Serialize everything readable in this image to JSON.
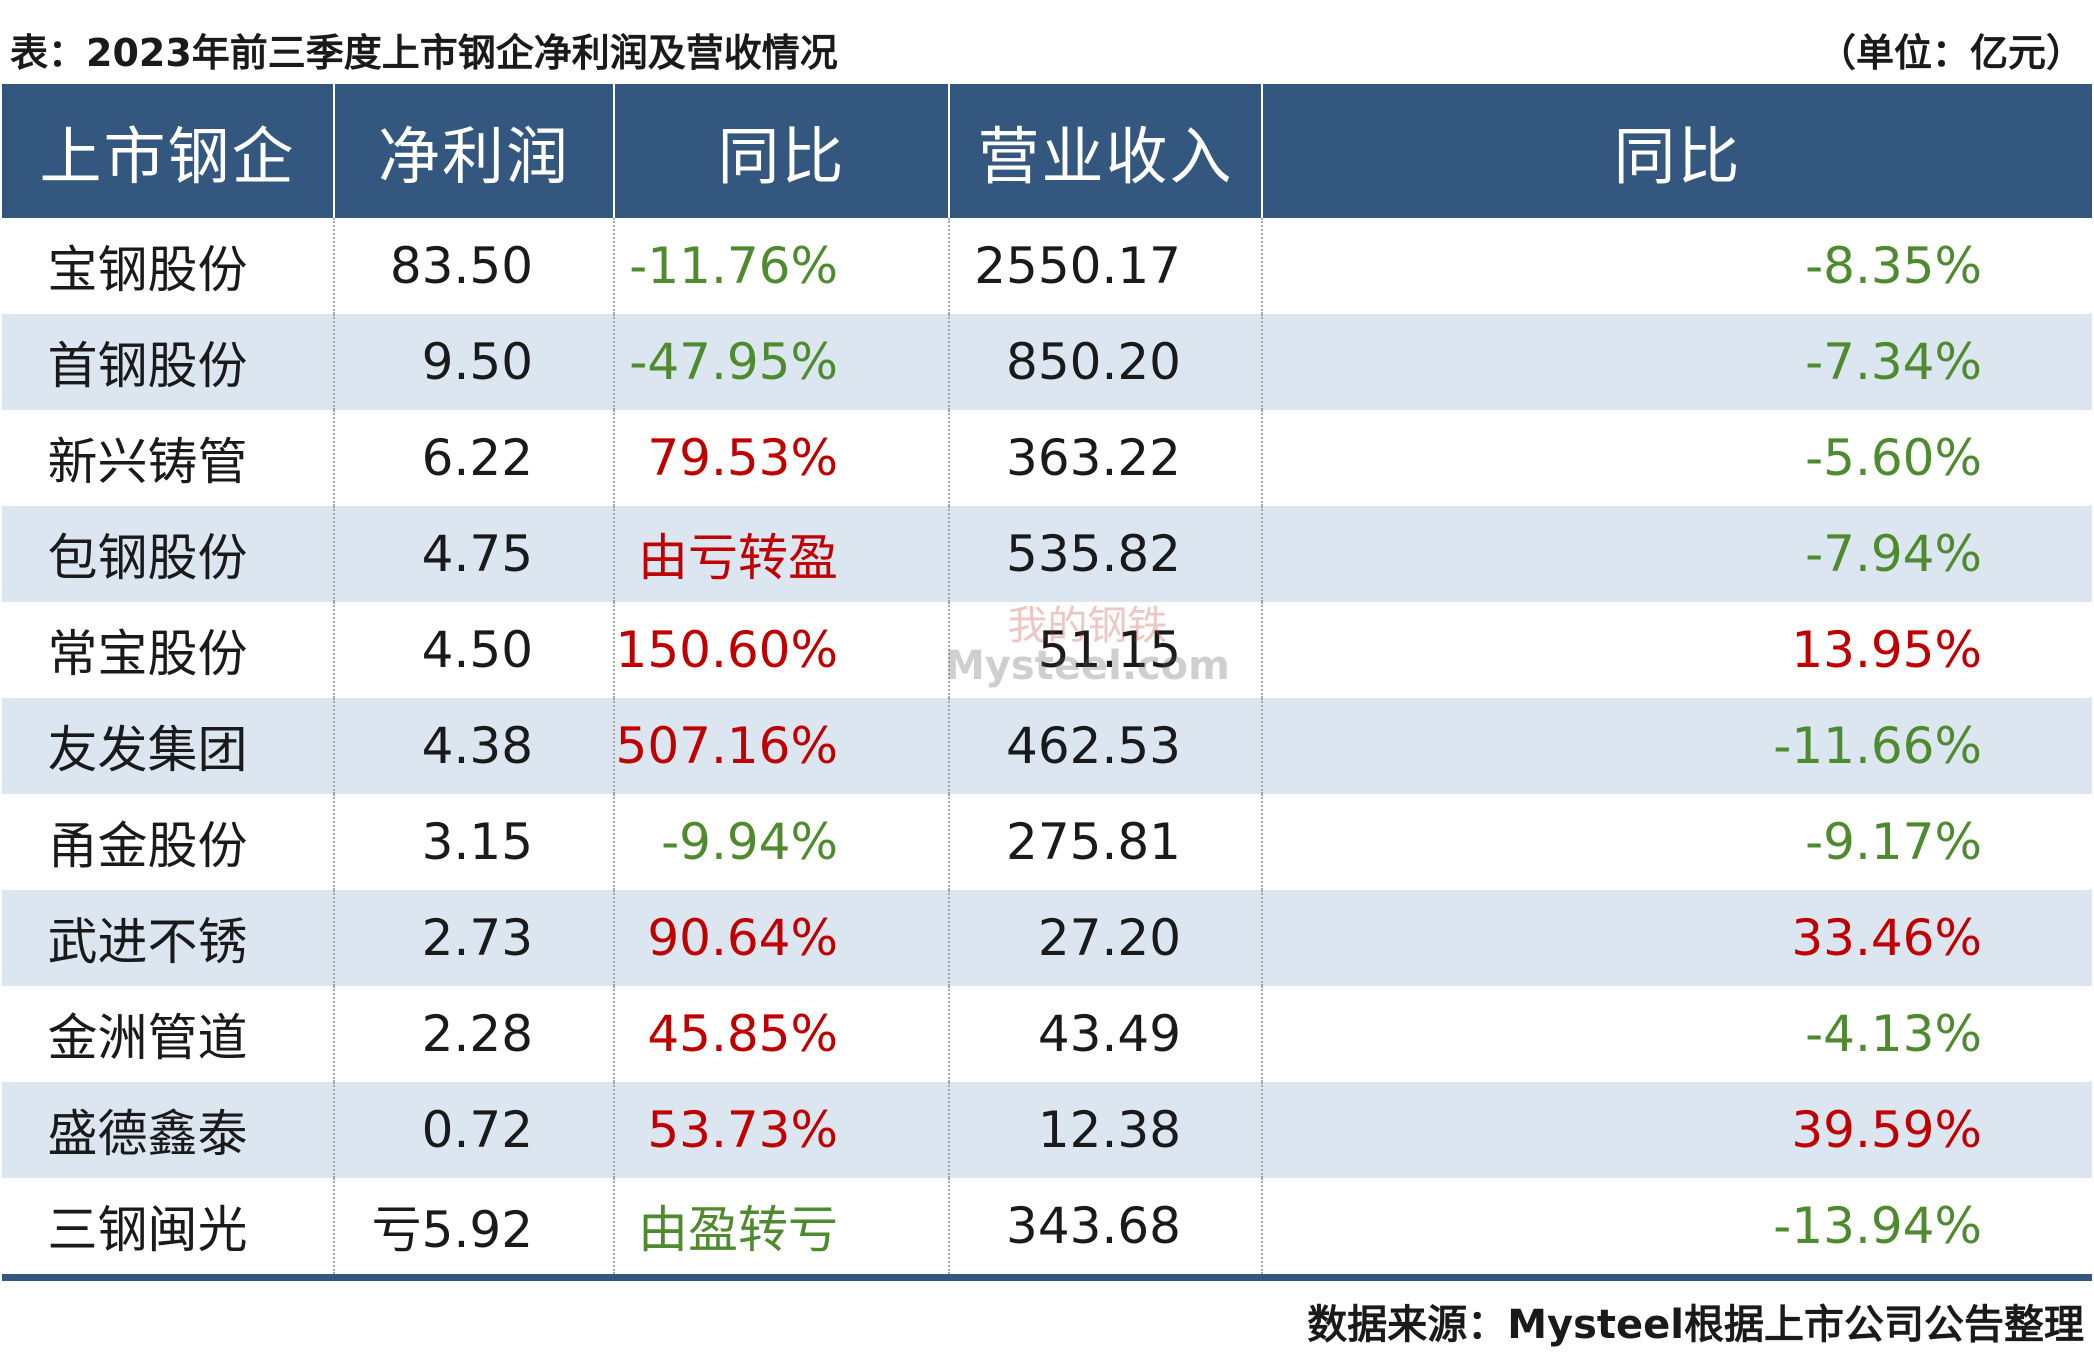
{
  "caption": "表：2023年前三季度上市钢企净利润及营收情况",
  "unit": "（单位：亿元）",
  "columns": [
    "上市钢企",
    "净利润",
    "同比",
    "营业收入",
    "同比"
  ],
  "colors": {
    "header_bg": "#33577f",
    "alt_row": "#dce6f1",
    "positive": "#c00000",
    "negative": "#4e8a2e"
  },
  "rows": [
    {
      "company": "宝钢股份",
      "net_profit": "83.50",
      "profit_yoy": "-11.76%",
      "profit_yoy_trend": "down",
      "revenue": "2550.17",
      "revenue_yoy": "-8.35%",
      "revenue_yoy_trend": "down"
    },
    {
      "company": "首钢股份",
      "net_profit": "9.50",
      "profit_yoy": "-47.95%",
      "profit_yoy_trend": "down",
      "revenue": "850.20",
      "revenue_yoy": "-7.34%",
      "revenue_yoy_trend": "down"
    },
    {
      "company": "新兴铸管",
      "net_profit": "6.22",
      "profit_yoy": "79.53%",
      "profit_yoy_trend": "up",
      "revenue": "363.22",
      "revenue_yoy": "-5.60%",
      "revenue_yoy_trend": "down"
    },
    {
      "company": "包钢股份",
      "net_profit": "4.75",
      "profit_yoy": "由亏转盈",
      "profit_yoy_trend": "up",
      "revenue": "535.82",
      "revenue_yoy": "-7.94%",
      "revenue_yoy_trend": "down"
    },
    {
      "company": "常宝股份",
      "net_profit": "4.50",
      "profit_yoy": "150.60%",
      "profit_yoy_trend": "up",
      "revenue": "51.15",
      "revenue_yoy": "13.95%",
      "revenue_yoy_trend": "up"
    },
    {
      "company": "友发集团",
      "net_profit": "4.38",
      "profit_yoy": "507.16%",
      "profit_yoy_trend": "up",
      "revenue": "462.53",
      "revenue_yoy": "-11.66%",
      "revenue_yoy_trend": "down"
    },
    {
      "company": "甬金股份",
      "net_profit": "3.15",
      "profit_yoy": "-9.94%",
      "profit_yoy_trend": "down",
      "revenue": "275.81",
      "revenue_yoy": "-9.17%",
      "revenue_yoy_trend": "down"
    },
    {
      "company": "武进不锈",
      "net_profit": "2.73",
      "profit_yoy": "90.64%",
      "profit_yoy_trend": "up",
      "revenue": "27.20",
      "revenue_yoy": "33.46%",
      "revenue_yoy_trend": "up"
    },
    {
      "company": "金洲管道",
      "net_profit": "2.28",
      "profit_yoy": "45.85%",
      "profit_yoy_trend": "up",
      "revenue": "43.49",
      "revenue_yoy": "-4.13%",
      "revenue_yoy_trend": "down"
    },
    {
      "company": "盛德鑫泰",
      "net_profit": "0.72",
      "profit_yoy": "53.73%",
      "profit_yoy_trend": "up",
      "revenue": "12.38",
      "revenue_yoy": "39.59%",
      "revenue_yoy_trend": "up"
    },
    {
      "company": "三钢闽光",
      "net_profit": "亏5.92",
      "profit_yoy": "由盈转亏",
      "profit_yoy_trend": "down",
      "revenue": "343.68",
      "revenue_yoy": "-13.94%",
      "revenue_yoy_trend": "down"
    }
  ],
  "source": "数据来源：Mysteel根据上市公司公告整理",
  "watermark": {
    "cn": "我的钢铁",
    "en": "Mysteel.com"
  }
}
